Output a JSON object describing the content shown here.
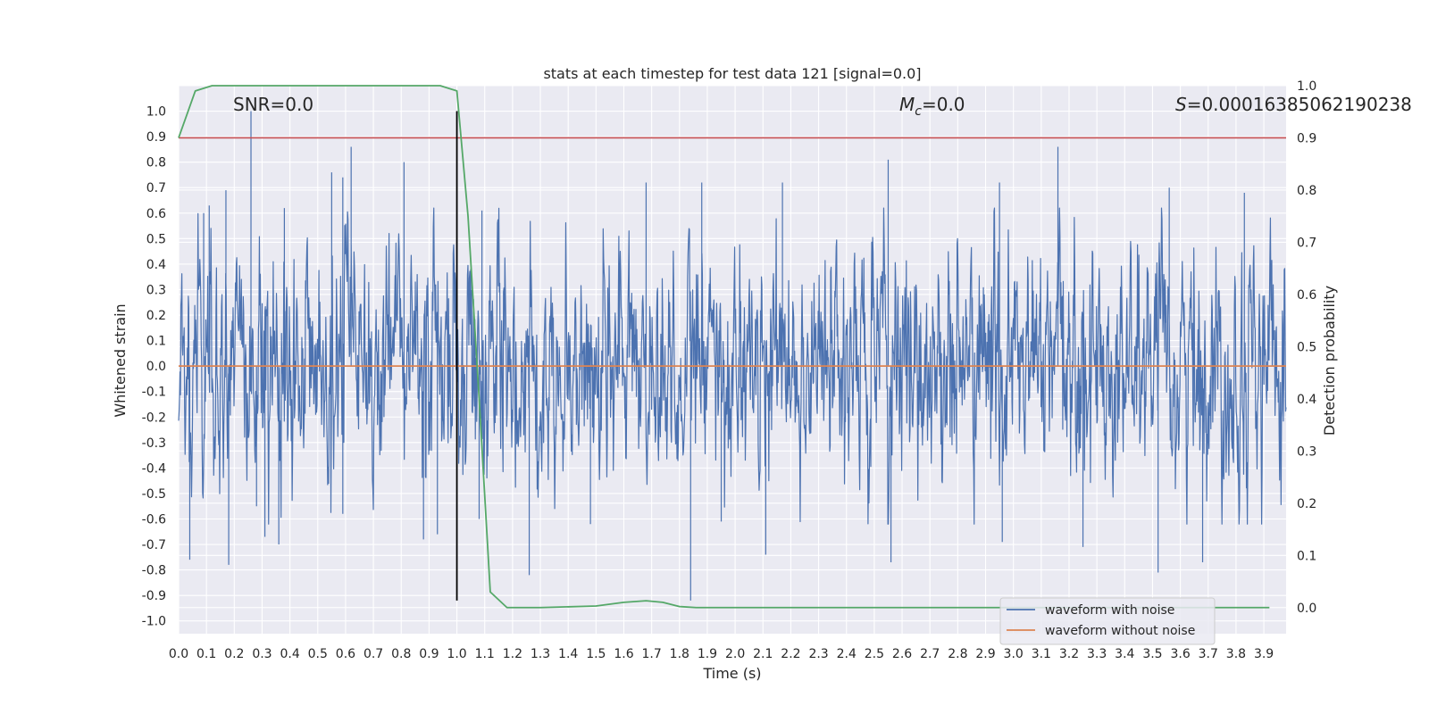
{
  "chart_data": {
    "type": "line",
    "title": "stats at each timestep for test data 121 [signal=0.0]",
    "xlabel": "Time (s)",
    "ylabel_left": "Whitened strain",
    "ylabel_right": "Detection probability",
    "xlim": [
      0.0,
      3.98
    ],
    "ylim_left": [
      -1.05,
      1.1
    ],
    "ylim_right": [
      -0.05,
      1.0
    ],
    "x_ticks": [
      "0.0",
      "0.1",
      "0.2",
      "0.3",
      "0.4",
      "0.5",
      "0.6",
      "0.7",
      "0.8",
      "0.9",
      "1.0",
      "1.1",
      "1.2",
      "1.3",
      "1.4",
      "1.5",
      "1.6",
      "1.7",
      "1.8",
      "1.9",
      "2.0",
      "2.1",
      "2.2",
      "2.3",
      "2.4",
      "2.5",
      "2.6",
      "2.7",
      "2.8",
      "2.9",
      "3.0",
      "3.1",
      "3.2",
      "3.3",
      "3.4",
      "3.5",
      "3.6",
      "3.7",
      "3.8",
      "3.9"
    ],
    "y_ticks_left": [
      "1.0",
      "0.9",
      "0.8",
      "0.7",
      "0.6",
      "0.5",
      "0.4",
      "0.3",
      "0.2",
      "0.1",
      "0.0",
      "-0.1",
      "-0.2",
      "-0.3",
      "-0.4",
      "-0.5",
      "-0.6",
      "-0.7",
      "-0.8",
      "-0.9",
      "-1.0"
    ],
    "y_ticks_right": [
      "1.0",
      "0.9",
      "0.8",
      "0.7",
      "0.6",
      "0.5",
      "0.4",
      "0.3",
      "0.2",
      "0.1",
      "0.0"
    ],
    "grid": true,
    "legend_position": "bottom-right",
    "annotations": {
      "snr": "SNR=0.0",
      "mc_symbol": "M",
      "mc_sub": "c",
      "mc_value": "=0.0",
      "s_symbol": "S",
      "s_value": "=0.00016385062190238"
    },
    "series": [
      {
        "name": "waveform with noise",
        "color": "#4c72b0",
        "axis": "left",
        "spikes": [
          [
            0.26,
            1.0
          ],
          [
            0.62,
            0.86
          ],
          [
            0.81,
            0.8
          ],
          [
            0.59,
            0.74
          ],
          [
            0.09,
            0.6
          ],
          [
            0.11,
            0.63
          ],
          [
            0.17,
            0.69
          ],
          [
            0.38,
            0.62
          ],
          [
            0.55,
            0.76
          ],
          [
            1.09,
            0.61
          ],
          [
            1.68,
            0.72
          ],
          [
            1.88,
            0.72
          ],
          [
            2.17,
            0.72
          ],
          [
            2.55,
            0.81
          ],
          [
            2.95,
            0.72
          ],
          [
            3.16,
            0.86
          ],
          [
            3.56,
            0.7
          ],
          [
            3.83,
            0.68
          ],
          [
            0.04,
            -0.55
          ],
          [
            0.04,
            -0.76
          ],
          [
            0.18,
            -0.78
          ],
          [
            0.28,
            -0.55
          ],
          [
            0.31,
            -0.67
          ],
          [
            0.36,
            -0.7
          ],
          [
            0.59,
            -0.58
          ],
          [
            0.88,
            -0.68
          ],
          [
            0.93,
            -0.66
          ],
          [
            1.08,
            -0.6
          ],
          [
            1.26,
            -0.82
          ],
          [
            1.48,
            -0.62
          ],
          [
            1.84,
            -0.92
          ],
          [
            1.95,
            -0.61
          ],
          [
            2.11,
            -0.74
          ],
          [
            2.56,
            -0.77
          ],
          [
            2.96,
            -0.69
          ],
          [
            3.25,
            -0.71
          ],
          [
            3.52,
            -0.81
          ],
          [
            3.68,
            -0.77
          ]
        ]
      },
      {
        "name": "waveform without noise",
        "color": "#dd8452",
        "axis": "left",
        "x": [
          0.0,
          3.98
        ],
        "y": [
          0.0,
          0.0
        ]
      },
      {
        "name": "",
        "color": "#55a868",
        "axis": "right",
        "x": [
          0.0,
          0.06,
          0.12,
          0.2,
          0.4,
          0.6,
          0.8,
          0.94,
          1.0,
          1.04,
          1.08,
          1.12,
          1.18,
          1.3,
          1.5,
          1.6,
          1.68,
          1.74,
          1.8,
          1.86,
          2.0,
          2.5,
          3.0,
          3.5,
          3.92
        ],
        "y": [
          0.9,
          0.99,
          1.0,
          1.0,
          1.0,
          1.0,
          1.0,
          1.0,
          0.99,
          0.75,
          0.4,
          0.03,
          0.0,
          0.0,
          0.003,
          0.01,
          0.013,
          0.01,
          0.002,
          0.0,
          0.0,
          0.0,
          0.0,
          0.0,
          0.0
        ]
      },
      {
        "name": "",
        "color": "#c44e52",
        "axis": "right",
        "x": [
          0.0,
          3.98
        ],
        "y": [
          0.9,
          0.9
        ]
      }
    ],
    "vertical_line": {
      "x": 1.0,
      "y_from": -0.92,
      "y_to": 1.0,
      "color": "#000000"
    }
  }
}
